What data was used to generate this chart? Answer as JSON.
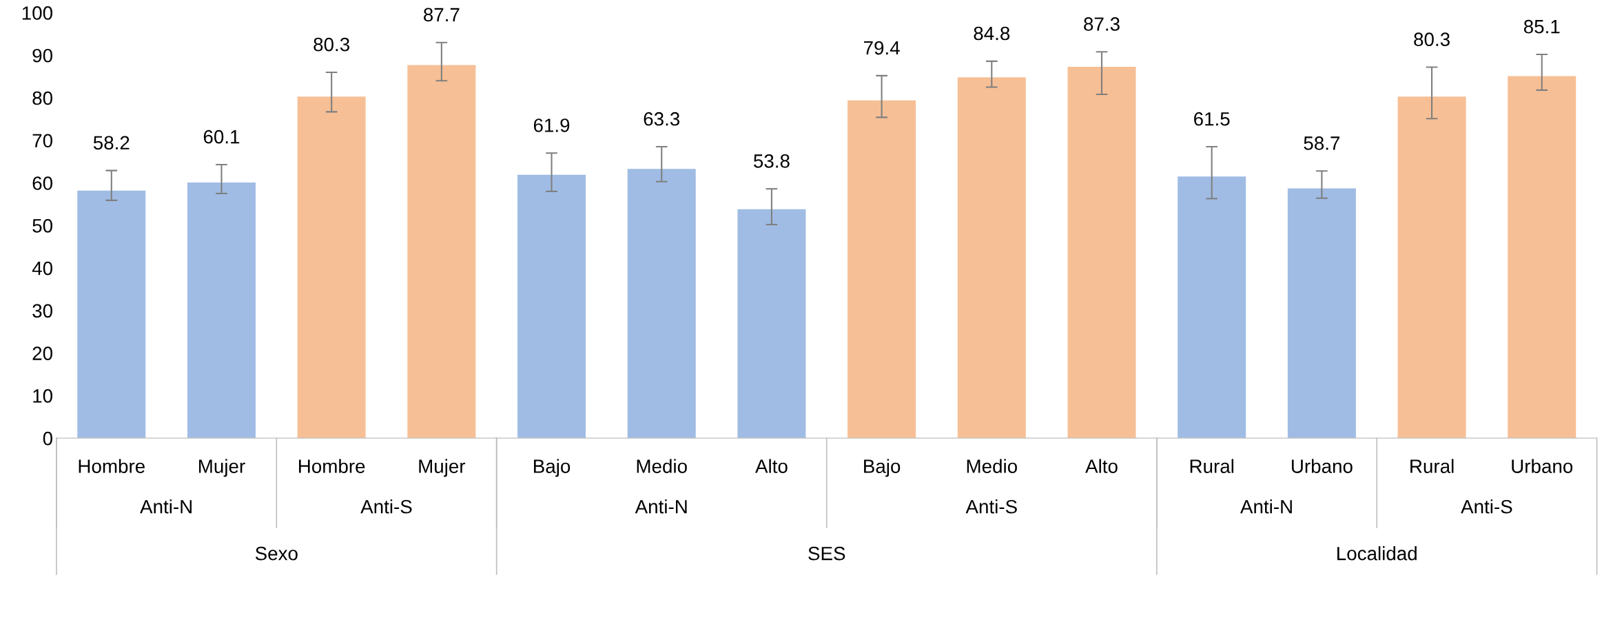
{
  "chart_data": {
    "type": "bar",
    "categories": [
      "Hombre",
      "Mujer",
      "Hombre",
      "Mujer",
      "Bajo",
      "Medio",
      "Alto",
      "Bajo",
      "Medio",
      "Alto",
      "Rural",
      "Urbano",
      "Rural",
      "Urbano"
    ],
    "values": [
      58.2,
      60.1,
      80.3,
      87.7,
      61.9,
      63.3,
      53.8,
      79.4,
      84.8,
      87.3,
      61.5,
      58.7,
      80.3,
      85.1
    ],
    "colors": [
      "#a0bce4",
      "#a0bce4",
      "#f7bf96",
      "#f7bf96",
      "#a0bce4",
      "#a0bce4",
      "#a0bce4",
      "#f7bf96",
      "#f7bf96",
      "#f7bf96",
      "#a0bce4",
      "#a0bce4",
      "#f7bf96",
      "#f7bf96"
    ],
    "errors": [
      [
        55.9,
        62.9
      ],
      [
        57.5,
        64.3
      ],
      [
        76.7,
        86
      ],
      [
        84,
        93
      ],
      [
        58,
        67
      ],
      [
        60.3,
        68.5
      ],
      [
        50.2,
        58.6
      ],
      [
        75.4,
        85.2
      ],
      [
        82.5,
        88.6
      ],
      [
        80.8,
        90.8
      ],
      [
        56.3,
        68.5
      ],
      [
        56.4,
        62.8
      ],
      [
        75.1,
        87.2
      ],
      [
        81.8,
        90.2
      ]
    ],
    "data_labels": true,
    "ylim": [
      0,
      100
    ],
    "yticks": [
      0,
      10,
      20,
      30,
      40,
      50,
      60,
      70,
      80,
      90,
      100
    ],
    "grid": false,
    "legend": false,
    "annotations": [
      "Anti-N",
      "Anti-S",
      "Anti-N",
      "Anti-S",
      "Anti-N",
      "Anti-S",
      "Sexo",
      "SES",
      "Localidad"
    ]
  }
}
